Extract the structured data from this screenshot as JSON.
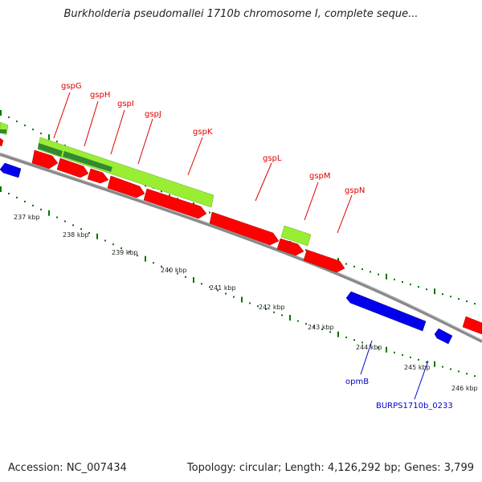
{
  "title": "Burkholderia pseudomallei 1710b chromosome I, complete seque...",
  "footer": {
    "accession": "Accession: NC_007434",
    "summary": "Topology: circular; Length: 4,126,292 bp; Genes: 3,799"
  },
  "colors": {
    "forward_gene": "#ff0000",
    "reverse_gene": "#0000ee",
    "gc_light": "#99ee33",
    "gc_dark": "#338833",
    "backbone": "#888888",
    "tick": "#007700",
    "label_red": "#e00000",
    "label_blue": "#0000cc"
  },
  "kbp_ticks": [
    "237 kbp",
    "238 kbp",
    "239 kbp",
    "240 kbp",
    "241 kbp",
    "242 kbp",
    "243 kbp",
    "244 kbp",
    "245 kbp",
    "246 kbp"
  ],
  "gene_labels": [
    {
      "name": "gspG",
      "strand": "forward"
    },
    {
      "name": "gspH",
      "strand": "forward"
    },
    {
      "name": "gspI",
      "strand": "forward"
    },
    {
      "name": "gspJ",
      "strand": "forward"
    },
    {
      "name": "gspK",
      "strand": "forward"
    },
    {
      "name": "gspL",
      "strand": "forward"
    },
    {
      "name": "gspM",
      "strand": "forward"
    },
    {
      "name": "gspN",
      "strand": "forward"
    },
    {
      "name": "opmB",
      "strand": "reverse"
    },
    {
      "name": "BURPS1710b_0233",
      "strand": "reverse"
    }
  ]
}
